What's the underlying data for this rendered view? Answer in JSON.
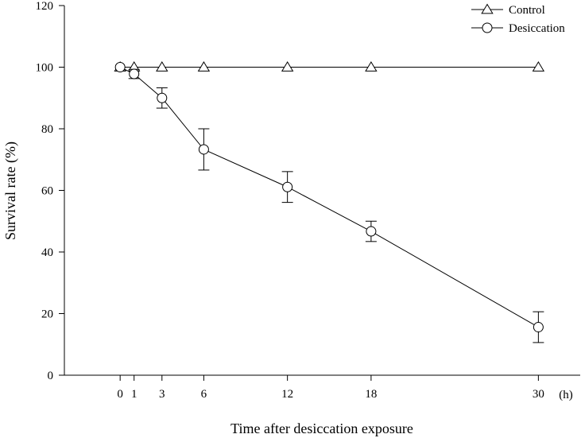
{
  "chart_data": {
    "type": "line",
    "title": "",
    "xlabel": "Time after desiccation exposure",
    "ylabel": "Survival rate (%)",
    "x_unit": "(h)",
    "x": [
      0,
      1,
      3,
      6,
      12,
      18,
      30
    ],
    "xlim": [
      -4,
      33
    ],
    "ylim": [
      0,
      120
    ],
    "x_ticks": [
      0,
      1,
      3,
      6,
      12,
      18,
      30
    ],
    "y_ticks": [
      0,
      20,
      40,
      60,
      80,
      100,
      120
    ],
    "grid": false,
    "legend_position": "top-right",
    "series": [
      {
        "name": "Control",
        "marker": "triangle",
        "values": [
          100,
          100,
          100,
          100,
          100,
          100,
          100
        ]
      },
      {
        "name": "Desiccation",
        "marker": "circle",
        "values": [
          100,
          97.8,
          90,
          73.3,
          61.1,
          46.7,
          15.6
        ],
        "error": [
          0,
          1.5,
          3.3,
          6.7,
          5.0,
          3.3,
          5.0
        ]
      }
    ]
  }
}
